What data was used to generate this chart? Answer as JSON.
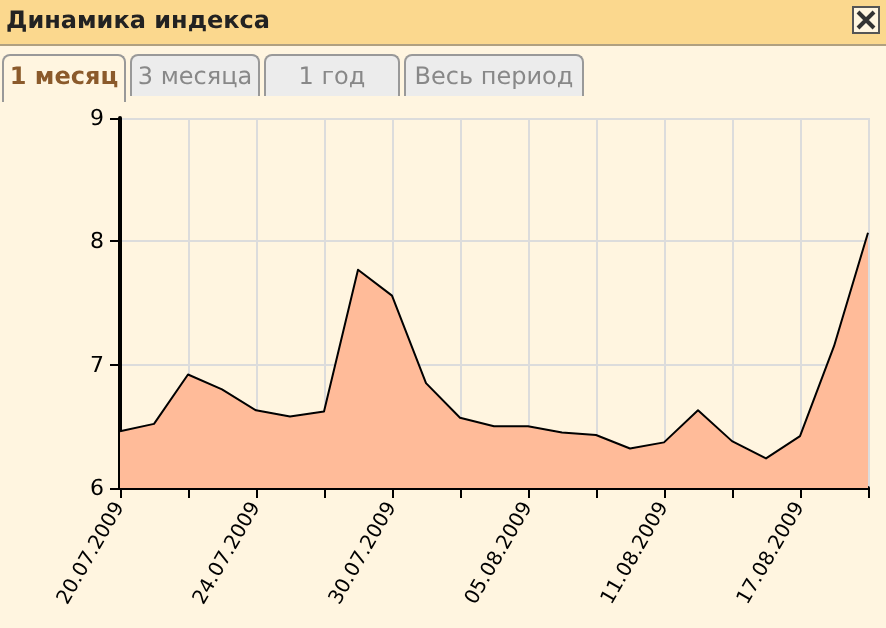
{
  "chart_data": {
    "type": "area",
    "title": "Динамика индекса",
    "annotations": [
      "1 месяц",
      "3 месяца",
      "1 год",
      "Весь период"
    ],
    "categories": [
      "20.07.2009",
      null,
      null,
      null,
      "24.07.2009",
      null,
      null,
      null,
      "30.07.2009",
      null,
      null,
      null,
      "05.08.2009",
      null,
      null,
      null,
      "11.08.2009",
      null,
      null,
      null,
      "17.08.2009",
      null,
      null
    ],
    "series": [
      {
        "color": "#ffbb99",
        "values": [
          6.46,
          6.52,
          6.92,
          6.8,
          6.63,
          6.58,
          6.62,
          7.77,
          7.56,
          6.85,
          6.57,
          6.5,
          6.5,
          6.45,
          6.43,
          6.32,
          6.37,
          6.63,
          6.38,
          6.24,
          6.42,
          7.15,
          8.07
        ]
      }
    ],
    "ylim": [
      6,
      9
    ],
    "yticks": [
      6,
      7,
      8,
      9
    ],
    "grid": true,
    "marker": "none",
    "line_style": "solid"
  }
}
